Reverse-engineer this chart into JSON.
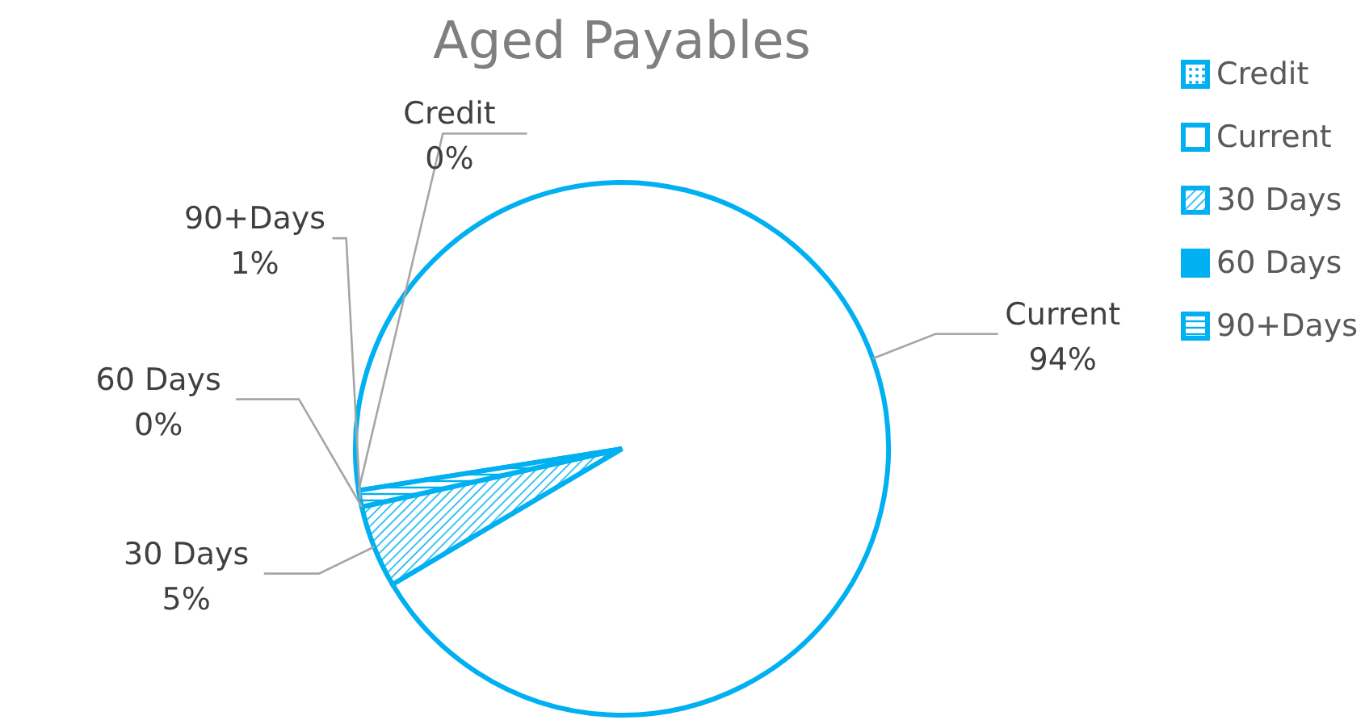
{
  "chart_data": {
    "type": "pie",
    "title": "Aged Payables",
    "categories": [
      "Credit",
      "Current",
      "30 Days",
      "60 Days",
      "90+Days"
    ],
    "values": [
      0,
      94,
      5,
      0,
      1
    ],
    "colors": [
      "#00b0f0",
      "#00b0f0",
      "#00b0f0",
      "#00b0f0",
      "#00b0f0"
    ],
    "value_labels": [
      "0%",
      "94%",
      "5%",
      "0%",
      "1%"
    ],
    "legend": "top right"
  }
}
